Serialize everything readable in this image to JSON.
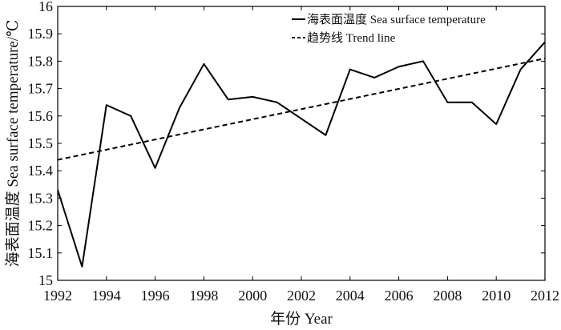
{
  "chart_data": {
    "type": "line",
    "x": [
      1992,
      1993,
      1994,
      1995,
      1996,
      1997,
      1998,
      1999,
      2000,
      2001,
      2002,
      2003,
      2004,
      2005,
      2006,
      2007,
      2008,
      2009,
      2010,
      2011,
      2012
    ],
    "series": [
      {
        "name": "海表面温度 Sea surface temperature",
        "style": "solid",
        "color": "#000000",
        "values": [
          15.33,
          15.05,
          15.64,
          15.6,
          15.41,
          15.63,
          15.79,
          15.66,
          15.67,
          15.65,
          15.59,
          15.53,
          15.77,
          15.74,
          15.78,
          15.8,
          15.65,
          15.65,
          15.57,
          15.77,
          15.87
        ]
      },
      {
        "name": "趋势线 Trend line",
        "style": "dashed",
        "color": "#000000",
        "values": [
          15.44,
          15.81
        ],
        "x": [
          1992,
          2012
        ]
      }
    ],
    "xlabel": "年份 Year",
    "ylabel": "海表面温度 Sea surface temperature/℃",
    "xlim": [
      1992,
      2012
    ],
    "ylim": [
      15,
      16
    ],
    "x_ticks": [
      1992,
      1994,
      1996,
      1998,
      2000,
      2002,
      2004,
      2006,
      2008,
      2010,
      2012
    ],
    "x_tick_labels": [
      "1992",
      "1994",
      "1996",
      "1998",
      "2000",
      "2002",
      "2004",
      "2006",
      "2008",
      "2010",
      "2012"
    ],
    "y_ticks": [
      15,
      15.1,
      15.2,
      15.3,
      15.4,
      15.5,
      15.6,
      15.7,
      15.8,
      15.9,
      16
    ],
    "y_tick_labels": [
      "15",
      "15.1",
      "15.2",
      "15.3",
      "15.4",
      "15.5",
      "15.6",
      "15.7",
      "15.8",
      "15.9",
      "16"
    ],
    "grid": false,
    "legend_position": "top-right"
  }
}
